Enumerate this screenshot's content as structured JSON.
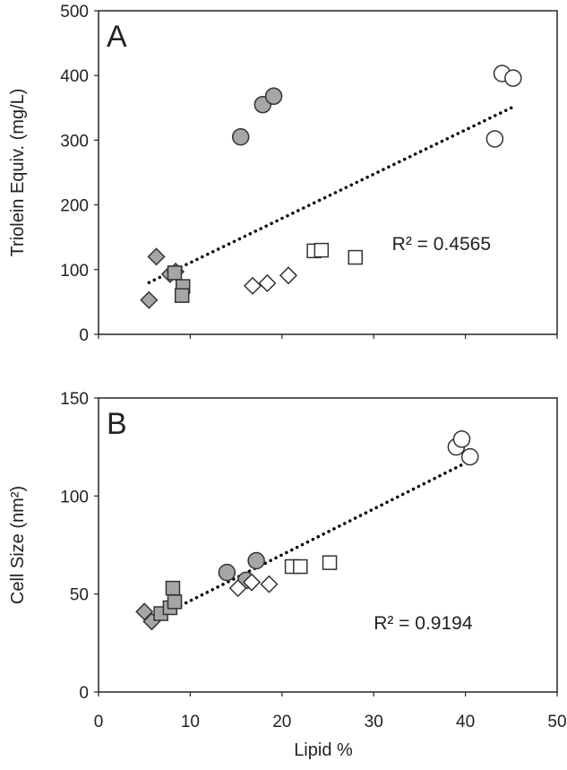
{
  "chart_data": [
    {
      "type": "scatter",
      "panel_label": "A",
      "xlabel": "",
      "ylabel": "Triolein Equiv. (mg/L)",
      "xlim": [
        0,
        50
      ],
      "ylim": [
        0,
        500
      ],
      "y_ticks": [
        "0",
        "100",
        "200",
        "300",
        "400",
        "500"
      ],
      "grid": false,
      "series": [
        {
          "marker": "diamond",
          "fill": "#a6a6a6",
          "points": [
            [
              5.5,
              53
            ],
            [
              6.3,
              120
            ],
            [
              7.8,
              93
            ],
            [
              8.4,
              97
            ]
          ]
        },
        {
          "marker": "square",
          "fill": "#a6a6a6",
          "points": [
            [
              8.3,
              95
            ],
            [
              9.2,
              74
            ],
            [
              9.1,
              60
            ]
          ]
        },
        {
          "marker": "circle",
          "fill": "#a6a6a6",
          "points": [
            [
              15.5,
              305
            ],
            [
              17.9,
              355
            ],
            [
              19.1,
              368
            ]
          ]
        },
        {
          "marker": "diamond",
          "fill": "#ffffff",
          "points": [
            [
              16.8,
              75
            ],
            [
              18.4,
              79
            ],
            [
              20.7,
              91
            ]
          ]
        },
        {
          "marker": "square",
          "fill": "#ffffff",
          "points": [
            [
              23.5,
              129
            ],
            [
              24.3,
              130
            ],
            [
              28.0,
              119
            ]
          ]
        },
        {
          "marker": "circle",
          "fill": "#ffffff",
          "points": [
            [
              43.2,
              302
            ],
            [
              44.0,
              403
            ],
            [
              45.2,
              396
            ]
          ]
        }
      ],
      "trendline": {
        "style": "dotted",
        "x": [
          5.5,
          45.0
        ],
        "y": [
          80,
          350
        ]
      },
      "annotation": {
        "text": "R² = 0.4565",
        "x": 32,
        "y": 130
      }
    },
    {
      "type": "scatter",
      "panel_label": "B",
      "xlabel": "Lipid %",
      "ylabel": "Cell Size (nm²)",
      "xlim": [
        0,
        50
      ],
      "ylim": [
        0,
        150
      ],
      "x_ticks": [
        "0",
        "10",
        "20",
        "30",
        "40",
        "50"
      ],
      "y_ticks": [
        "0",
        "50",
        "100",
        "150"
      ],
      "grid": false,
      "series": [
        {
          "marker": "diamond",
          "fill": "#a6a6a6",
          "points": [
            [
              5.0,
              41
            ],
            [
              5.8,
              36
            ]
          ]
        },
        {
          "marker": "square",
          "fill": "#a6a6a6",
          "points": [
            [
              6.8,
              40
            ],
            [
              7.8,
              43
            ],
            [
              8.3,
              46
            ],
            [
              8.1,
              53
            ]
          ]
        },
        {
          "marker": "circle",
          "fill": "#a6a6a6",
          "points": [
            [
              14.0,
              61
            ],
            [
              16.1,
              57
            ],
            [
              17.2,
              67
            ]
          ]
        },
        {
          "marker": "diamond",
          "fill": "#ffffff",
          "points": [
            [
              15.2,
              53
            ],
            [
              16.7,
              56
            ],
            [
              18.6,
              55
            ]
          ]
        },
        {
          "marker": "square",
          "fill": "#ffffff",
          "points": [
            [
              21.1,
              64
            ],
            [
              22.0,
              64
            ],
            [
              25.2,
              66
            ]
          ]
        },
        {
          "marker": "circle",
          "fill": "#ffffff",
          "points": [
            [
              39.0,
              125
            ],
            [
              39.6,
              129
            ],
            [
              40.5,
              120
            ]
          ]
        }
      ],
      "trendline": {
        "style": "dotted",
        "x": [
          5.5,
          40.5
        ],
        "y": [
          36,
          118
        ]
      },
      "annotation": {
        "text": "R² = 0.9194",
        "x": 30,
        "y": 32
      }
    }
  ]
}
